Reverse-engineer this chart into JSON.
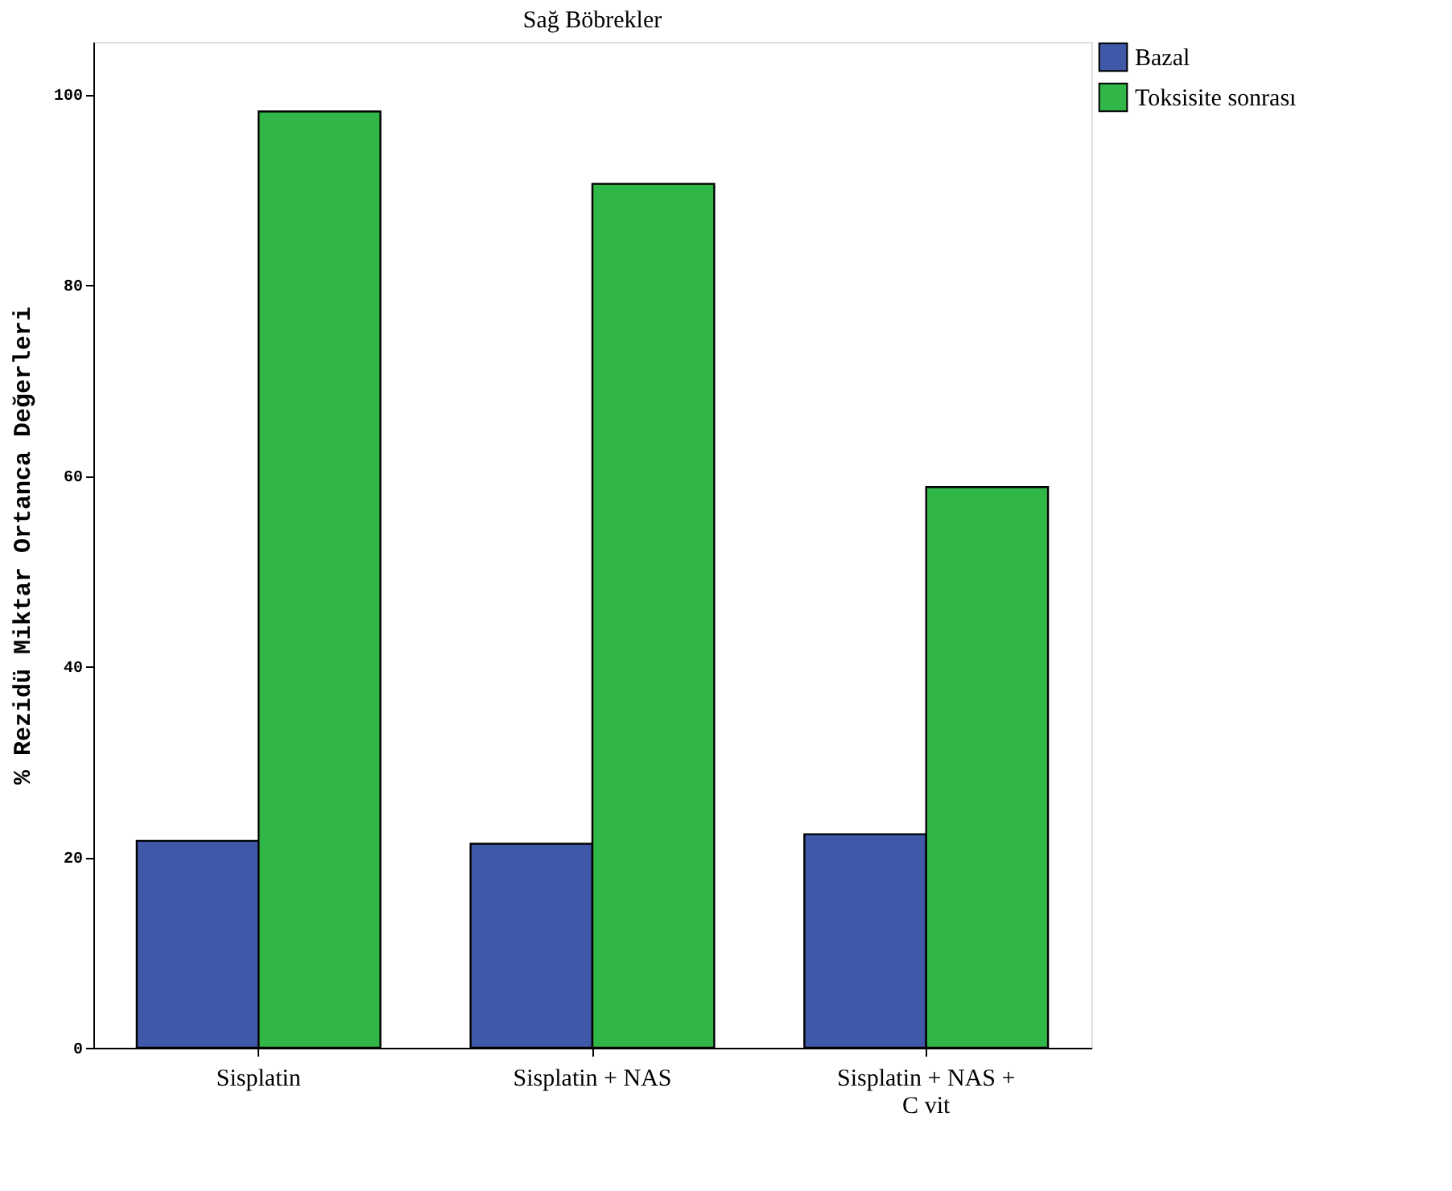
{
  "chart_data": {
    "type": "bar",
    "title": "Sağ Böbrekler",
    "ylabel": "% Rezidü Miktar Ortanca Değerleri",
    "categories": [
      "Sisplatin",
      "Sisplatin + NAS",
      "Sisplatin + NAS + C vit"
    ],
    "series": [
      {
        "name": "Bazal",
        "color": "#3f58a8",
        "values": [
          21.7,
          21.4,
          22.4
        ]
      },
      {
        "name": "Toksisite sonrası",
        "color": "#31b648",
        "values": [
          98.2,
          90.6,
          58.8
        ]
      }
    ],
    "ylim": [
      0,
      105.5
    ],
    "yticks": [
      0,
      20,
      40,
      60,
      80,
      100
    ],
    "grid": false,
    "legend": "top right"
  }
}
